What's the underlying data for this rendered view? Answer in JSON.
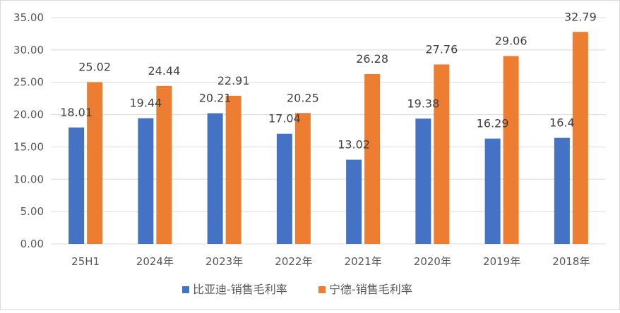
{
  "chart_data": {
    "type": "bar",
    "title": "",
    "xlabel": "",
    "ylabel": "",
    "categories": [
      "25H1",
      "2024年",
      "2023年",
      "2022年",
      "2021年",
      "2020年",
      "2019年",
      "2018年"
    ],
    "series": [
      {
        "name": "比亚迪-销售毛利率",
        "color": "#4472c4",
        "values": [
          18.01,
          19.44,
          20.21,
          17.04,
          13.02,
          19.38,
          16.29,
          16.4
        ],
        "labels": [
          "18.01",
          "19.44",
          "20.21",
          "17.04",
          "13.02",
          "19.38",
          "16.29",
          "16.4"
        ]
      },
      {
        "name": "宁德-销售毛利率",
        "color": "#ed7d31",
        "values": [
          25.02,
          24.44,
          22.91,
          20.25,
          26.28,
          27.76,
          29.06,
          32.79
        ],
        "labels": [
          "25.02",
          "24.44",
          "22.91",
          "20.25",
          "26.28",
          "27.76",
          "29.06",
          "32.79"
        ]
      }
    ],
    "ylim": [
      0,
      35
    ],
    "yticks": [
      "0.00",
      "5.00",
      "10.00",
      "15.00",
      "20.00",
      "25.00",
      "30.00",
      "35.00"
    ],
    "grid": true,
    "legend_position": "bottom"
  }
}
